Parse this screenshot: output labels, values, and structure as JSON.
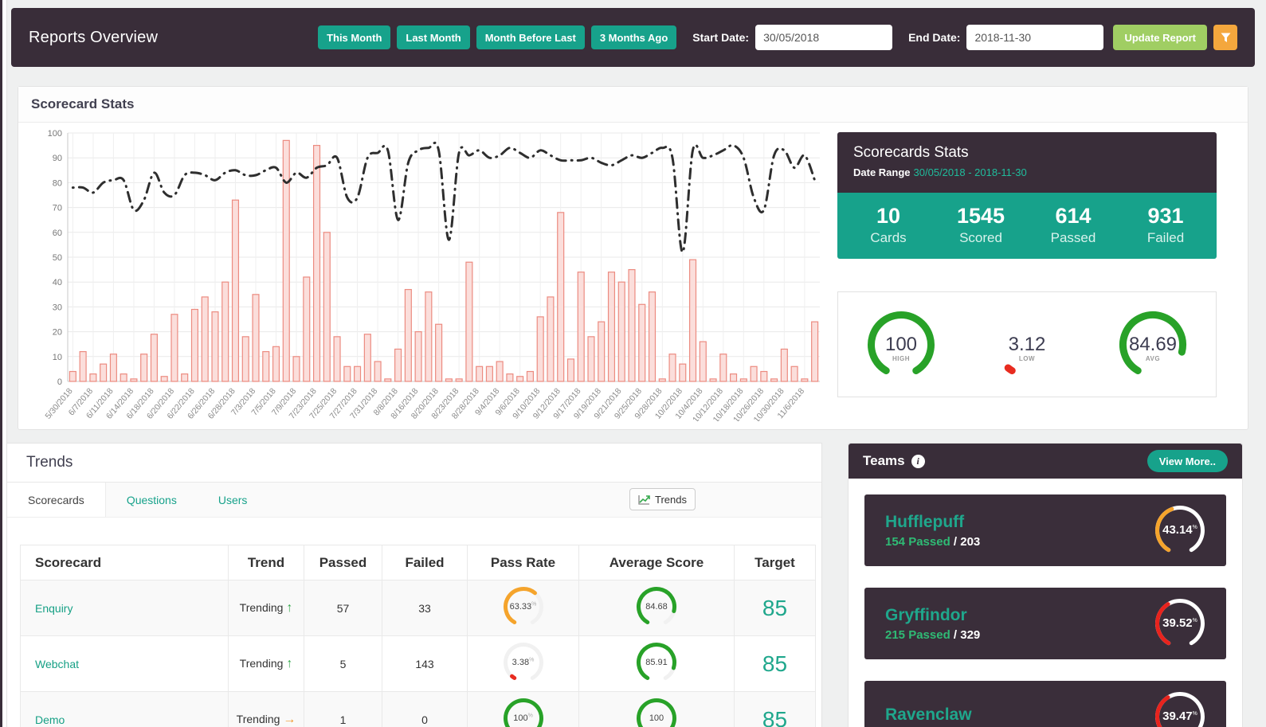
{
  "header": {
    "title": "Reports Overview",
    "quick_buttons": [
      "This Month",
      "Last Month",
      "Month Before Last",
      "3 Months Ago"
    ],
    "start_date_label": "Start Date:",
    "start_date_value": "30/05/2018",
    "end_date_label": "End Date:",
    "end_date_value": "2018-11-30",
    "update_button_label": "Update Report",
    "filter_icon": "funnel-icon"
  },
  "scorecard_stats": {
    "panel_title": "Scorecard Stats",
    "card": {
      "title": "Scorecards Stats",
      "date_range_label": "Date Range",
      "date_range_value": "30/05/2018 - 2018-11-30",
      "stats": [
        {
          "value": "10",
          "label": "Cards"
        },
        {
          "value": "1545",
          "label": "Scored"
        },
        {
          "value": "614",
          "label": "Passed"
        },
        {
          "value": "931",
          "label": "Failed"
        }
      ]
    },
    "summary_gauges": [
      {
        "value": "100",
        "label": "HIGH",
        "percent": 100,
        "color": "#28a228"
      },
      {
        "value": "3.12",
        "label": "LOW",
        "percent": 3.12,
        "color": "#e82c20"
      },
      {
        "value": "84.69",
        "label": "AVG",
        "percent": 84.69,
        "color": "#28a228"
      }
    ]
  },
  "chart_data": {
    "type": "bar",
    "title": "",
    "xlabel": "",
    "ylabel": "",
    "ylim": [
      0,
      100
    ],
    "yticks": [
      0,
      10,
      20,
      30,
      40,
      50,
      60,
      70,
      80,
      90,
      100
    ],
    "grid": true,
    "label_every": 2,
    "tick_labels": [
      "5/30/2018",
      "6/7/2018",
      "6/11/2018",
      "6/14/2018",
      "6/18/2018",
      "6/20/2018",
      "6/22/2018",
      "6/26/2018",
      "6/28/2018",
      "7/3/2018",
      "7/5/2018",
      "7/9/2018",
      "7/23/2018",
      "7/25/2018",
      "7/27/2018",
      "7/31/2018",
      "8/8/2018",
      "8/16/2018",
      "8/20/2018",
      "8/23/2018",
      "8/28/2018",
      "9/4/2018",
      "9/6/2018",
      "9/10/2018",
      "9/12/2018",
      "9/17/2018",
      "9/19/2018",
      "9/21/2018",
      "9/25/2018",
      "9/28/2018",
      "10/2/2018",
      "10/4/2018",
      "10/12/2018",
      "10/18/2018",
      "10/26/2018",
      "10/30/2018",
      "11/6/2018"
    ],
    "series": [
      {
        "name": "Scored",
        "type": "bar",
        "values": [
          4,
          12,
          3,
          7,
          11,
          3,
          1,
          11,
          19,
          2,
          27,
          3,
          29,
          34,
          28,
          40,
          73,
          18,
          35,
          12,
          14,
          97,
          10,
          42,
          95,
          60,
          18,
          6,
          6,
          19,
          8,
          1,
          13,
          37,
          20,
          36,
          23,
          1,
          1,
          48,
          6,
          6,
          8,
          3,
          2,
          4,
          26,
          34,
          68,
          9,
          44,
          18,
          24,
          44,
          40,
          45,
          31,
          36,
          1,
          11,
          7,
          49,
          16,
          1,
          11,
          3,
          1,
          6,
          4,
          1,
          13,
          6,
          1,
          24
        ]
      },
      {
        "name": "Average Score",
        "type": "line",
        "values": [
          78,
          78,
          76,
          80,
          81,
          81,
          69,
          73,
          84,
          76,
          75,
          83,
          84,
          83,
          81,
          84,
          85,
          83,
          83,
          85,
          86,
          80,
          84,
          82,
          86,
          87,
          90,
          74,
          74,
          90,
          92,
          93,
          65,
          88,
          93,
          94,
          93,
          57,
          92,
          91,
          93,
          90,
          91,
          94,
          92,
          90,
          93,
          91,
          89,
          89,
          89,
          90,
          88,
          87,
          89,
          91,
          90,
          92,
          94,
          90,
          52,
          93,
          90,
          91,
          93,
          95,
          90,
          74,
          69,
          91,
          93,
          86,
          91,
          81
        ]
      }
    ],
    "bar_fill": "#fbdedb",
    "bar_border": "#ec8b80",
    "line_color": "#2e2e2e"
  },
  "trends": {
    "panel_title": "Trends",
    "tabs": [
      {
        "label": "Scorecards",
        "active": true
      },
      {
        "label": "Questions",
        "active": false
      },
      {
        "label": "Users",
        "active": false
      }
    ],
    "trends_button_label": "Trends",
    "table": {
      "columns": [
        "Scorecard",
        "Trend",
        "Passed",
        "Failed",
        "Pass Rate",
        "Average Score",
        "Target"
      ],
      "rows": [
        {
          "scorecard": "Enquiry",
          "trend_label": "Trending",
          "trend_dir": "up",
          "passed": "57",
          "failed": "33",
          "pass_rate": 63.33,
          "pass_rate_display": "63.33",
          "pass_rate_color": "#f5a42c",
          "avg_score": 84.68,
          "avg_display": "84.68",
          "avg_color": "#28a228",
          "target": "85"
        },
        {
          "scorecard": "Webchat",
          "trend_label": "Trending",
          "trend_dir": "up",
          "passed": "5",
          "failed": "143",
          "pass_rate": 3.38,
          "pass_rate_display": "3.38",
          "pass_rate_color": "#e82c20",
          "avg_score": 85.91,
          "avg_display": "85.91",
          "avg_color": "#28a228",
          "target": "85"
        },
        {
          "scorecard": "Demo",
          "trend_label": "Trending",
          "trend_dir": "right",
          "passed": "1",
          "failed": "0",
          "pass_rate": 100,
          "pass_rate_display": "100",
          "pass_rate_color": "#28a228",
          "avg_score": 100,
          "avg_display": "100",
          "avg_color": "#28a228",
          "target": "85"
        }
      ]
    }
  },
  "teams": {
    "title": "Teams",
    "info_icon": "info-icon",
    "view_more_label": "View More..",
    "cards": [
      {
        "name": "Hufflepuff",
        "passed": "154 Passed",
        "total": "203",
        "percent": 43.14,
        "display": "43.14",
        "color": "#f5a42c"
      },
      {
        "name": "Gryffindor",
        "passed": "215 Passed",
        "total": "329",
        "percent": 39.52,
        "display": "39.52",
        "color": "#e8231d"
      },
      {
        "name": "Ravenclaw",
        "passed": "",
        "total": "",
        "percent": 39.47,
        "display": "39.47",
        "color": "#e8231d"
      }
    ]
  },
  "colors": {
    "dark": "#392d39",
    "teal": "#17a28b",
    "green_button": "#a0ce63",
    "orange_button": "#f4a73d",
    "page_bg": "#eff0f0"
  }
}
